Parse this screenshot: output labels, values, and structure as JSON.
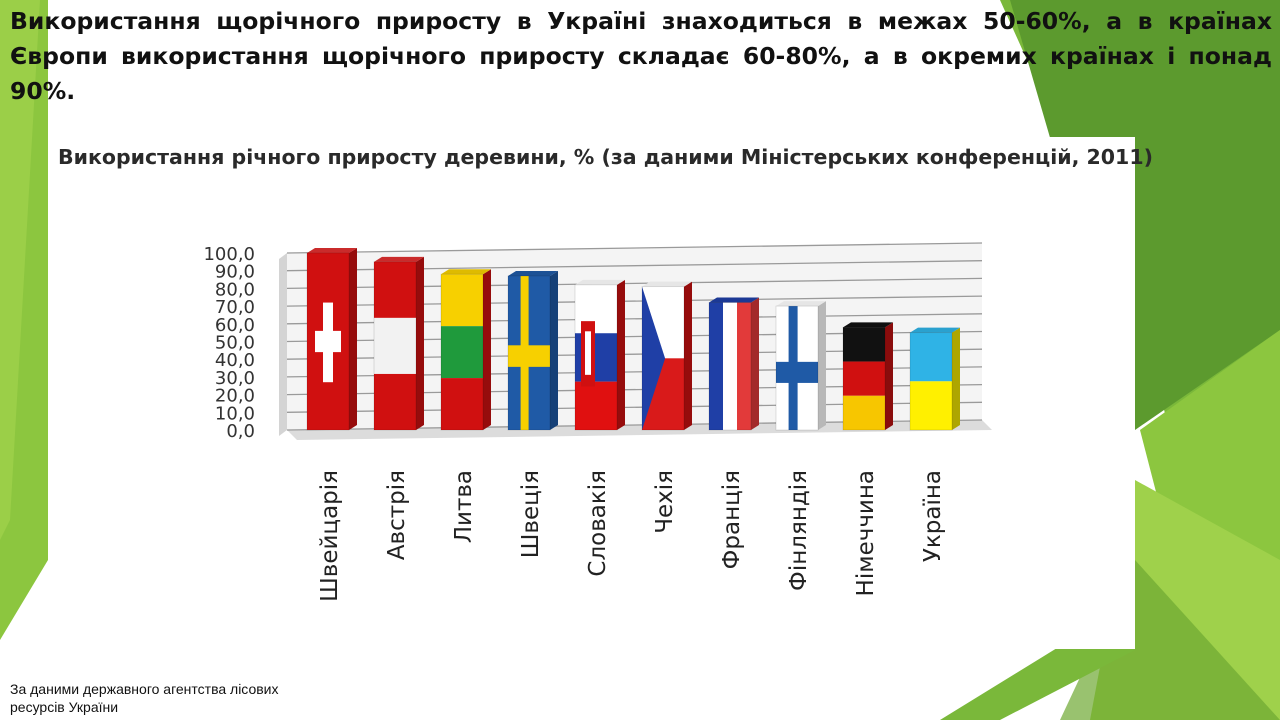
{
  "headline": "Використання щорічного приросту в Україні знаходиться  в межах 50-60%, а в країнах Європи використання щорічного приросту складає 60-80%, а в окремих країнах і понад 90%.",
  "source_note": "За даними державного агентства лісових ресурсів України",
  "colors": {
    "background_green_light": "#8cc63f",
    "background_green_mid": "#6da832",
    "background_green_dark": "#4e8a2a"
  },
  "chart_data": {
    "type": "bar",
    "title": "Використання річного приросту деревини, % (за даними Міністерських конференцій, 2011)",
    "xlabel": "",
    "ylabel": "",
    "ylim": [
      0,
      100
    ],
    "y_ticks": [
      "0,0",
      "10,0",
      "20,0",
      "30,0",
      "40,0",
      "50,0",
      "60,0",
      "70,0",
      "80,0",
      "90,0",
      "100,0"
    ],
    "grid": true,
    "style": "3d bars filled with national flag patterns",
    "categories": [
      "Швейцарія",
      "Австрія",
      "Литва",
      "Швеція",
      "Словакія",
      "Чехія",
      "Франція",
      "Фінляндія",
      "Німеччина",
      "Україна"
    ],
    "values": [
      100,
      95,
      88,
      87,
      82,
      81,
      72,
      70,
      58,
      55
    ]
  }
}
